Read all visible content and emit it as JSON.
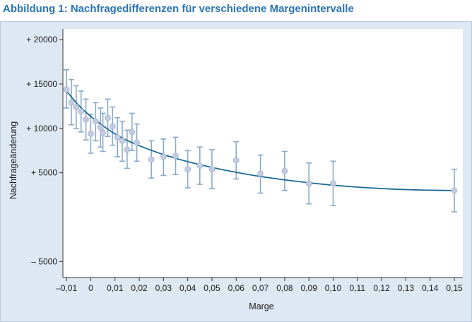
{
  "title": "Abbildung 1: Nachfragedifferenzen für verschiedene Margenintervalle",
  "chart_data": {
    "type": "scatter",
    "title": "Abbildung 1: Nachfragedifferenzen für verschiedene Margenintervalle",
    "xlabel": "Marge",
    "ylabel": "Nachfrageänderung",
    "x_ticks": [
      -0.01,
      0,
      0.01,
      0.02,
      0.03,
      0.04,
      0.05,
      0.06,
      0.07,
      0.08,
      0.09,
      0.1,
      0.11,
      0.12,
      0.13,
      0.14,
      0.15
    ],
    "x_tick_labels": [
      "–0,01",
      "0",
      "0,01",
      "0,02",
      "0,03",
      "0,04",
      "0,05",
      "0,06",
      "0,07",
      "0,08",
      "0,09",
      "0,10",
      "0,11",
      "0,12",
      "0,13",
      "0,14",
      "0,15"
    ],
    "y_ticks": [
      -5000,
      5000,
      10000,
      15000,
      20000
    ],
    "y_tick_labels": [
      "– 5000",
      "+ 5000",
      "+ 10000",
      "+ 15000",
      "+ 20000"
    ],
    "xlim": [
      -0.0115,
      0.1535
    ],
    "ylim": [
      -6800,
      21200
    ],
    "grid": false,
    "point_color": "#c3cbe1",
    "errorbar_color": "#8aaac9",
    "fit_color": "#1d6a96",
    "points": [
      {
        "x": -0.01,
        "y": 14400,
        "lo": 12300,
        "hi": 16600
      },
      {
        "x": -0.008,
        "y": 12900,
        "lo": 10400,
        "hi": 15500
      },
      {
        "x": -0.006,
        "y": 12400,
        "lo": 10000,
        "hi": 14800
      },
      {
        "x": -0.004,
        "y": 11900,
        "lo": 9600,
        "hi": 14200
      },
      {
        "x": -0.002,
        "y": 11000,
        "lo": 8700,
        "hi": 13300
      },
      {
        "x": 0.0,
        "y": 9400,
        "lo": 7200,
        "hi": 11600
      },
      {
        "x": 0.002,
        "y": 10800,
        "lo": 8600,
        "hi": 12900
      },
      {
        "x": 0.004,
        "y": 10100,
        "lo": 7900,
        "hi": 12300
      },
      {
        "x": 0.005,
        "y": 9500,
        "lo": 7400,
        "hi": 11700
      },
      {
        "x": 0.007,
        "y": 11200,
        "lo": 9100,
        "hi": 13300
      },
      {
        "x": 0.009,
        "y": 10200,
        "lo": 8100,
        "hi": 12400
      },
      {
        "x": 0.011,
        "y": 9000,
        "lo": 6800,
        "hi": 11200
      },
      {
        "x": 0.013,
        "y": 8600,
        "lo": 6300,
        "hi": 10800
      },
      {
        "x": 0.015,
        "y": 7600,
        "lo": 5500,
        "hi": 9800
      },
      {
        "x": 0.017,
        "y": 9600,
        "lo": 7500,
        "hi": 11700
      },
      {
        "x": 0.019,
        "y": 8400,
        "lo": 6300,
        "hi": 10500
      },
      {
        "x": 0.025,
        "y": 6500,
        "lo": 4400,
        "hi": 8600
      },
      {
        "x": 0.03,
        "y": 6800,
        "lo": 4700,
        "hi": 8800
      },
      {
        "x": 0.035,
        "y": 6900,
        "lo": 4800,
        "hi": 9000
      },
      {
        "x": 0.04,
        "y": 5400,
        "lo": 3300,
        "hi": 7500
      },
      {
        "x": 0.045,
        "y": 5800,
        "lo": 3700,
        "hi": 7900
      },
      {
        "x": 0.05,
        "y": 5400,
        "lo": 3200,
        "hi": 7600
      },
      {
        "x": 0.06,
        "y": 6400,
        "lo": 4300,
        "hi": 8500
      },
      {
        "x": 0.07,
        "y": 4900,
        "lo": 2700,
        "hi": 7000
      },
      {
        "x": 0.08,
        "y": 5200,
        "lo": 3000,
        "hi": 7400
      },
      {
        "x": 0.09,
        "y": 3800,
        "lo": 1500,
        "hi": 6100
      },
      {
        "x": 0.1,
        "y": 3800,
        "lo": 1300,
        "hi": 6300
      },
      {
        "x": 0.15,
        "y": 3000,
        "lo": 600,
        "hi": 5400
      }
    ],
    "fit_curve": [
      [
        -0.01,
        14200
      ],
      [
        -0.005,
        12600
      ],
      [
        0.0,
        11350
      ],
      [
        0.005,
        10300
      ],
      [
        0.01,
        9380
      ],
      [
        0.015,
        8650
      ],
      [
        0.02,
        8050
      ],
      [
        0.03,
        7050
      ],
      [
        0.04,
        6250
      ],
      [
        0.05,
        5600
      ],
      [
        0.06,
        5050
      ],
      [
        0.07,
        4580
      ],
      [
        0.08,
        4200
      ],
      [
        0.09,
        3870
      ],
      [
        0.1,
        3600
      ],
      [
        0.11,
        3380
      ],
      [
        0.12,
        3220
      ],
      [
        0.13,
        3100
      ],
      [
        0.14,
        3030
      ],
      [
        0.15,
        3000
      ]
    ]
  }
}
